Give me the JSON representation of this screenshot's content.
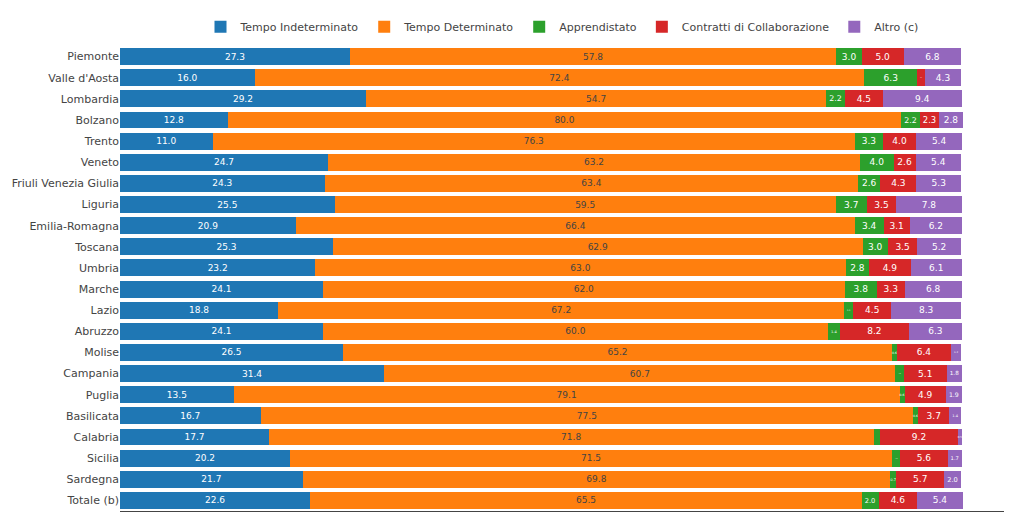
{
  "chart_data": {
    "type": "bar",
    "orientation": "horizontal",
    "stacked": true,
    "categories": [
      "Piemonte",
      "Valle d'Aosta",
      "Lombardia",
      "Bolzano",
      "Trento",
      "Veneto",
      "Friuli Venezia Giulia",
      "Liguria",
      "Emilia-Romagna",
      "Toscana",
      "Umbria",
      "Marche",
      "Lazio",
      "Abruzzo",
      "Molise",
      "Campania",
      "Puglia",
      "Basilicata",
      "Calabria",
      "Sicilia",
      "Sardegna",
      "Totale (b)"
    ],
    "series": [
      {
        "name": "Tempo Indeterminato",
        "values": [
          27.3,
          16.0,
          29.2,
          12.8,
          11.0,
          24.7,
          24.3,
          25.5,
          20.9,
          25.3,
          23.2,
          24.1,
          18.8,
          24.1,
          26.5,
          31.4,
          13.5,
          16.7,
          17.7,
          20.2,
          21.7,
          22.6
        ],
        "value_labels": [
          "27.3",
          "16.0",
          "29.2",
          "12.8",
          "11.0",
          "24.7",
          "24.3",
          "25.5",
          "20.9",
          "25.3",
          "23.2",
          "24.1",
          "18.8",
          "24.1",
          "26.5",
          "31.4",
          "13.5",
          "16.7",
          "17.7",
          "20.2",
          "21.7",
          "22.6"
        ]
      },
      {
        "name": "Tempo Determinato",
        "values": [
          57.8,
          72.4,
          54.7,
          80.0,
          76.3,
          63.2,
          63.4,
          59.5,
          66.4,
          62.9,
          63.0,
          62.0,
          67.2,
          60.0,
          65.2,
          60.7,
          79.1,
          77.5,
          71.8,
          71.5,
          69.8,
          65.5
        ],
        "value_labels": [
          "57.8",
          "72.4",
          "54.7",
          "80.0",
          "76.3",
          "63.2",
          "63.4",
          "59.5",
          "66.4",
          "62.9",
          "63.0",
          "62.0",
          "67.2",
          "60.0",
          "65.2",
          "60.7",
          "79.1",
          "77.5",
          "71.8",
          "71.5",
          "69.8",
          "65.5"
        ]
      },
      {
        "name": "Apprendistato",
        "values": [
          3.0,
          6.3,
          2.2,
          2.2,
          3.3,
          4.0,
          2.6,
          3.7,
          3.4,
          3.0,
          2.8,
          3.8,
          1.1,
          1.4,
          0.6,
          1.0,
          0.6,
          0.6,
          0.8,
          1.0,
          0.7,
          2.0
        ],
        "value_labels": [
          "3.0",
          "6.3",
          "2.2",
          "2.2",
          "3.3",
          "4.0",
          "2.6",
          "3.7",
          "3.4",
          "3.0",
          "2.8",
          "3.8",
          "1.1",
          "1.4",
          "0.6",
          "1.0",
          "0.6",
          "0.6",
          "0.8",
          "1.0",
          "0.7",
          "2.0"
        ]
      },
      {
        "name": "Contratti di Collaborazione",
        "values": [
          5.0,
          0.9,
          4.5,
          2.3,
          4.0,
          2.6,
          4.3,
          3.5,
          3.1,
          3.5,
          4.9,
          3.3,
          4.5,
          8.2,
          6.4,
          5.1,
          4.9,
          3.7,
          9.2,
          5.6,
          5.7,
          4.6
        ],
        "value_labels": [
          "5.0",
          "0.9",
          "4.5",
          "2.3",
          "4.0",
          "2.6",
          "4.3",
          "3.5",
          "3.1",
          "3.5",
          "4.9",
          "3.3",
          "4.5",
          "8.2",
          "6.4",
          "5.1",
          "4.9",
          "3.7",
          "9.2",
          "5.6",
          "5.7",
          "4.6"
        ]
      },
      {
        "name": "Altro (c)",
        "values": [
          6.8,
          4.3,
          9.4,
          2.8,
          5.4,
          5.4,
          5.3,
          7.8,
          6.2,
          5.2,
          6.1,
          6.8,
          8.3,
          6.3,
          1.2,
          1.8,
          1.9,
          1.4,
          0.5,
          1.7,
          2.0,
          5.4
        ],
        "value_labels": [
          "6.8",
          "4.3",
          "9.4",
          "2.8",
          "5.4",
          "5.4",
          "5.3",
          "7.8",
          "6.2",
          "5.2",
          "6.1",
          "6.8",
          "8.3",
          "6.3",
          "1.2",
          "1.8",
          "1.9",
          "1.4",
          "0.5",
          "1.7",
          "2.0",
          "5.4"
        ]
      }
    ],
    "xlim": [
      0,
      105
    ],
    "data_labels": true,
    "tick_labels": "y",
    "grid": false,
    "legend": "top"
  }
}
